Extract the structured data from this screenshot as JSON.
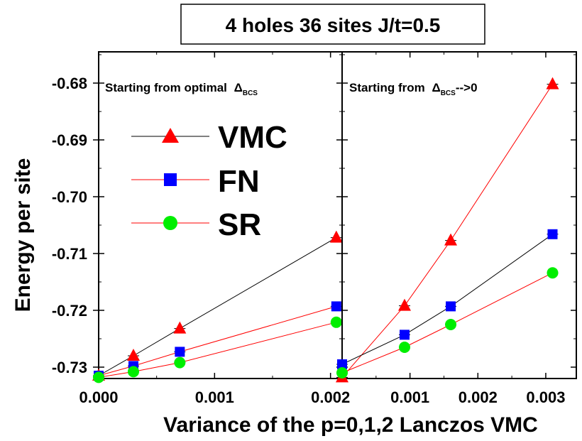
{
  "title": "4 holes 36  sites J/t=0.5",
  "chart_data": [
    {
      "type": "line",
      "panel": "left",
      "annotation": "Starting from optimal",
      "annotation_symbol": "Δ",
      "annotation_subscript": "BCS",
      "ylabel": "Energy per site",
      "xlim": [
        0.0,
        0.0021
      ],
      "ylim": [
        -0.732,
        -0.6745
      ],
      "x_ticks": [
        0.0,
        0.001,
        0.002
      ],
      "x_tick_labels": [
        "0.000",
        "0.001",
        "0.002"
      ],
      "y_ticks": [
        -0.73,
        -0.72,
        -0.71,
        -0.7,
        -0.69,
        -0.68
      ],
      "y_tick_labels": [
        "-0.73",
        "-0.72",
        "-0.71",
        "-0.70",
        "-0.69",
        "-0.68"
      ],
      "legend": {
        "position": "upper-left",
        "entries": [
          "VMC",
          "FN",
          "SR"
        ]
      },
      "series": [
        {
          "name": "VMC",
          "marker": "triangle",
          "color": "#ff0000",
          "line_color": "#000000",
          "x": [
            0.0,
            0.0003,
            0.0007,
            0.00205
          ],
          "y": [
            -0.7315,
            -0.728,
            -0.7232,
            -0.7072
          ]
        },
        {
          "name": "FN",
          "marker": "square",
          "color": "#0000ff",
          "line_color": "#ff0000",
          "x": [
            0.0,
            0.0003,
            0.0007,
            0.00205
          ],
          "y": [
            -0.7315,
            -0.7298,
            -0.7273,
            -0.7193
          ]
        },
        {
          "name": "SR",
          "marker": "circle",
          "color": "#00ee00",
          "line_color": "#ff0000",
          "x": [
            0.0,
            0.0003,
            0.0007,
            0.00205
          ],
          "y": [
            -0.7318,
            -0.7308,
            -0.7292,
            -0.7221
          ]
        }
      ]
    },
    {
      "type": "line",
      "panel": "right",
      "annotation": "Starting from",
      "annotation_symbol": "Δ",
      "annotation_subscript": "BCS",
      "annotation_suffix": "-->0",
      "xlim": [
        0.0,
        0.00345
      ],
      "ylim": [
        -0.732,
        -0.6745
      ],
      "x_ticks": [
        0.001,
        0.002,
        0.003
      ],
      "x_tick_labels": [
        "0.001",
        "0.002",
        "0.003"
      ],
      "xlabel": "Variance of the p=0,1,2 Lanczos VMC",
      "series": [
        {
          "name": "VMC",
          "marker": "triangle",
          "color": "#ff0000",
          "line_color": "#ff0000",
          "x": [
            0.0,
            0.00092,
            0.0016,
            0.0031
          ],
          "y": [
            -0.7318,
            -0.7192,
            -0.7077,
            -0.6802
          ]
        },
        {
          "name": "FN",
          "marker": "square",
          "color": "#0000ff",
          "line_color": "#000000",
          "x": [
            0.0,
            0.00092,
            0.0016,
            0.0031
          ],
          "y": [
            -0.7295,
            -0.7243,
            -0.7193,
            -0.7066
          ]
        },
        {
          "name": "SR",
          "marker": "circle",
          "color": "#00ee00",
          "line_color": "#ff0000",
          "x": [
            0.0,
            0.00092,
            0.0016,
            0.0031
          ],
          "y": [
            -0.731,
            -0.7265,
            -0.7225,
            -0.7134
          ]
        }
      ]
    }
  ]
}
